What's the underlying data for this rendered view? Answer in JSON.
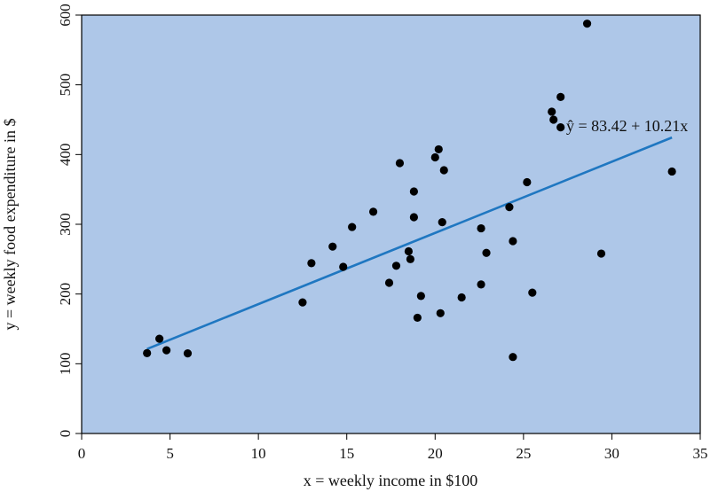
{
  "colors": {
    "plot_background": "#aec7e8",
    "points": "#000000",
    "fit_line": "#1f77c1",
    "frame": "#000000"
  },
  "chart_data": {
    "type": "scatter",
    "title": "",
    "xlabel": "x = weekly income in $100",
    "ylabel": "y = weekly food expenditure in $",
    "xlim": [
      0,
      35
    ],
    "ylim": [
      0,
      600
    ],
    "xticks": [
      0,
      5,
      10,
      15,
      20,
      25,
      30,
      35
    ],
    "yticks": [
      0,
      100,
      200,
      300,
      400,
      500,
      600
    ],
    "grid": false,
    "points": [
      {
        "x": 3.7,
        "y": 115.2
      },
      {
        "x": 4.4,
        "y": 135.9
      },
      {
        "x": 4.8,
        "y": 119.3
      },
      {
        "x": 6.0,
        "y": 114.9
      },
      {
        "x": 12.5,
        "y": 188.0
      },
      {
        "x": 13.0,
        "y": 244.2
      },
      {
        "x": 14.2,
        "y": 268.0
      },
      {
        "x": 14.8,
        "y": 239.0
      },
      {
        "x": 15.3,
        "y": 296.1
      },
      {
        "x": 16.5,
        "y": 318.0
      },
      {
        "x": 17.4,
        "y": 216.1
      },
      {
        "x": 17.8,
        "y": 240.5
      },
      {
        "x": 18.0,
        "y": 387.7
      },
      {
        "x": 18.5,
        "y": 261.2
      },
      {
        "x": 18.6,
        "y": 250.0
      },
      {
        "x": 18.8,
        "y": 310.2
      },
      {
        "x": 18.8,
        "y": 347.0
      },
      {
        "x": 19.0,
        "y": 166.0
      },
      {
        "x": 19.2,
        "y": 197.2
      },
      {
        "x": 20.0,
        "y": 396.0
      },
      {
        "x": 20.2,
        "y": 407.5
      },
      {
        "x": 20.3,
        "y": 172.5
      },
      {
        "x": 20.4,
        "y": 303.0
      },
      {
        "x": 20.5,
        "y": 377.5
      },
      {
        "x": 21.5,
        "y": 195.1
      },
      {
        "x": 22.6,
        "y": 213.7
      },
      {
        "x": 22.6,
        "y": 294.2
      },
      {
        "x": 22.9,
        "y": 259.0
      },
      {
        "x": 24.2,
        "y": 324.6
      },
      {
        "x": 24.4,
        "y": 109.7
      },
      {
        "x": 24.4,
        "y": 275.8
      },
      {
        "x": 25.2,
        "y": 360.4
      },
      {
        "x": 25.5,
        "y": 202.0
      },
      {
        "x": 26.6,
        "y": 461.5
      },
      {
        "x": 26.7,
        "y": 450.0
      },
      {
        "x": 27.1,
        "y": 482.6
      },
      {
        "x": 27.1,
        "y": 439.0
      },
      {
        "x": 28.6,
        "y": 587.7
      },
      {
        "x": 29.4,
        "y": 258.0
      },
      {
        "x": 33.4,
        "y": 375.7
      }
    ],
    "fit_line": {
      "intercept": 83.42,
      "slope": 10.21,
      "x_range": [
        3.7,
        33.4
      ],
      "label": "ŷ = 83.42 + 10.21x"
    }
  }
}
